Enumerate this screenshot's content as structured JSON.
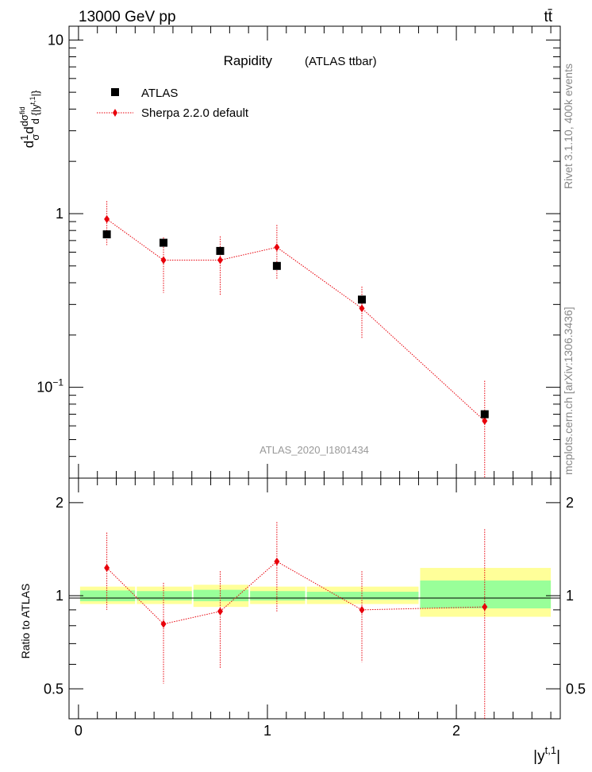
{
  "header": {
    "energy_label": "13000 GeV pp",
    "process_label": "tt̄"
  },
  "side_text": {
    "rivet": "Rivet 3.1.10,  400k events",
    "mcplots": "mcplots.cern.ch [arXiv:1306.3436]"
  },
  "chart_data": [
    {
      "type": "scatter",
      "title": "Rapidity",
      "subtitle": "(ATLAS ttbar)",
      "analysis_id": "ATLAS_2020_I1801434",
      "y_scale": "log",
      "ylim": [
        0.03,
        12
      ],
      "xlim": [
        -0.05,
        2.55
      ],
      "ylabel": "1/σ dσ^fid / d{|y^t,1|}",
      "y_tick_labels": [
        "10^-1",
        "1",
        "10"
      ],
      "legend_position": "top-left",
      "series": [
        {
          "name": "ATLAS",
          "color": "#000000",
          "marker": "square",
          "x": [
            0.15,
            0.45,
            0.75,
            1.05,
            1.5,
            2.15
          ],
          "y": [
            0.76,
            0.68,
            0.61,
            0.5,
            0.32,
            0.07
          ]
        },
        {
          "name": "Sherpa 2.2.0 default",
          "color": "#e8000b",
          "marker": "diamond",
          "line": "dotted",
          "x": [
            0.15,
            0.45,
            0.75,
            1.05,
            1.5,
            2.15
          ],
          "y": [
            0.93,
            0.54,
            0.54,
            0.64,
            0.285,
            0.064
          ],
          "y_err_low": [
            0.27,
            0.19,
            0.2,
            0.22,
            0.095,
            0.045
          ],
          "y_err_high": [
            0.25,
            0.19,
            0.2,
            0.22,
            0.095,
            0.045
          ]
        }
      ]
    },
    {
      "type": "scatter",
      "ylabel": "Ratio to ATLAS",
      "xlabel": "|y^t,1|",
      "xlim": [
        -0.05,
        2.55
      ],
      "ylim": [
        0.4,
        2.4
      ],
      "y_scale": "log",
      "x_ticks": [
        0,
        1,
        2
      ],
      "y_ticks": [
        0.5,
        1,
        2
      ],
      "bands": {
        "bins": [
          [
            0.0,
            0.3
          ],
          [
            0.3,
            0.6
          ],
          [
            0.6,
            0.9
          ],
          [
            0.9,
            1.2
          ],
          [
            1.2,
            1.8
          ],
          [
            1.8,
            2.5
          ]
        ],
        "stat": [
          [
            0.96,
            1.04
          ],
          [
            0.965,
            1.035
          ],
          [
            0.96,
            1.045
          ],
          [
            0.965,
            1.035
          ],
          [
            0.97,
            1.03
          ],
          [
            0.91,
            1.12
          ]
        ],
        "total": [
          [
            0.94,
            1.07
          ],
          [
            0.94,
            1.07
          ],
          [
            0.92,
            1.085
          ],
          [
            0.94,
            1.07
          ],
          [
            0.94,
            1.07
          ],
          [
            0.855,
            1.23
          ]
        ],
        "stat_color": "#99ff99",
        "total_color": "#ffff99"
      },
      "series": [
        {
          "name": "Sherpa 2.2.0 default",
          "color": "#e8000b",
          "x": [
            0.15,
            0.45,
            0.75,
            1.05,
            1.5,
            2.15
          ],
          "y": [
            1.23,
            0.81,
            0.89,
            1.29,
            0.9,
            0.92
          ],
          "y_err_low": [
            0.33,
            0.29,
            0.31,
            0.4,
            0.29,
            0.65
          ],
          "y_err_high": [
            0.37,
            0.29,
            0.31,
            0.44,
            0.3,
            0.72
          ]
        }
      ]
    }
  ]
}
